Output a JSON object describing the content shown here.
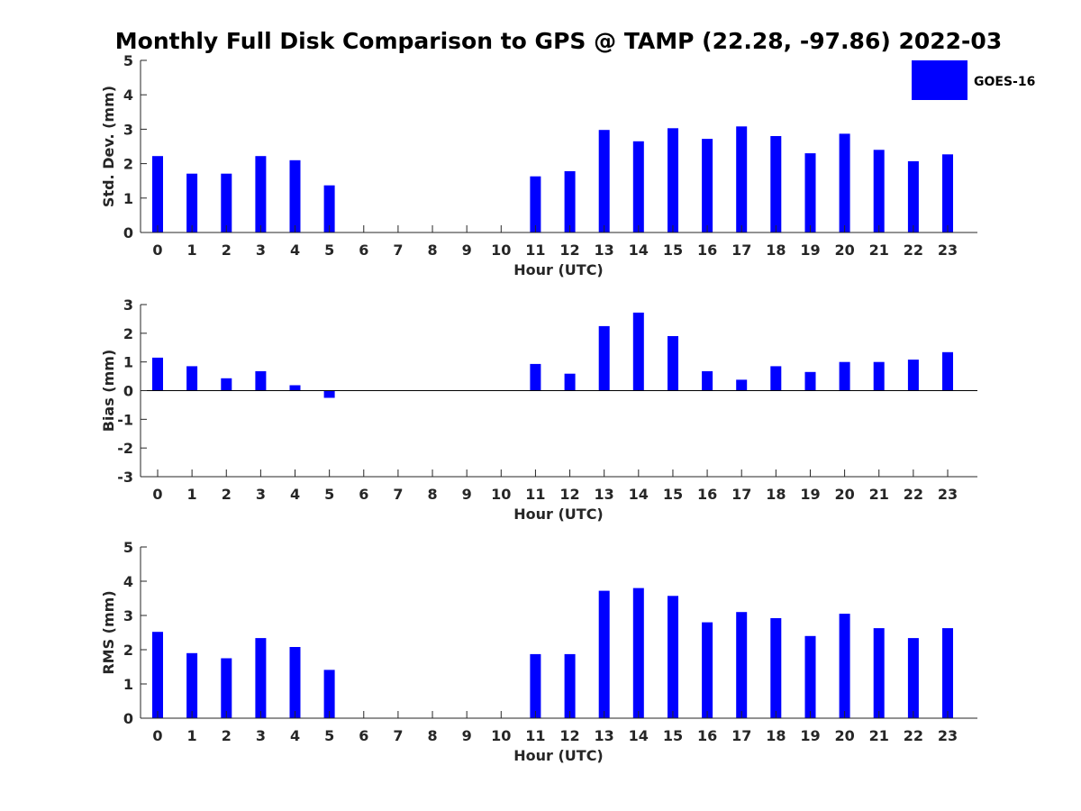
{
  "title": "Monthly Full Disk Comparison to GPS @ TAMP (22.28, -97.86) 2022-03",
  "colors": {
    "bar": "#0000ff",
    "axis": "#262626"
  },
  "chart_data": [
    {
      "type": "bar",
      "xlabel": "Hour (UTC)",
      "ylabel": "Std. Dev. (mm)",
      "ylim": [
        0,
        5
      ],
      "yticks": [
        0,
        1,
        2,
        3,
        4,
        5
      ],
      "categories": [
        "0",
        "1",
        "2",
        "3",
        "4",
        "5",
        "6",
        "7",
        "8",
        "9",
        "10",
        "11",
        "12",
        "13",
        "14",
        "15",
        "16",
        "17",
        "18",
        "19",
        "20",
        "21",
        "22",
        "23"
      ],
      "series": [
        {
          "name": "GOES-16",
          "values": [
            2.22,
            1.71,
            1.71,
            2.22,
            2.1,
            1.37,
            null,
            null,
            null,
            null,
            null,
            1.63,
            1.78,
            2.98,
            2.65,
            3.03,
            2.72,
            3.08,
            2.8,
            2.3,
            2.87,
            2.4,
            2.07,
            2.27
          ]
        }
      ],
      "legend": {
        "position": "top-right",
        "entries": [
          "GOES-16"
        ]
      }
    },
    {
      "type": "bar",
      "xlabel": "Hour (UTC)",
      "ylabel": "Bias (mm)",
      "ylim": [
        -3,
        3
      ],
      "yticks": [
        -3,
        -2,
        -1,
        0,
        1,
        2,
        3
      ],
      "categories": [
        "0",
        "1",
        "2",
        "3",
        "4",
        "5",
        "6",
        "7",
        "8",
        "9",
        "10",
        "11",
        "12",
        "13",
        "14",
        "15",
        "16",
        "17",
        "18",
        "19",
        "20",
        "21",
        "22",
        "23"
      ],
      "series": [
        {
          "name": "GOES-16",
          "values": [
            1.15,
            0.85,
            0.43,
            0.68,
            0.19,
            -0.25,
            null,
            null,
            null,
            null,
            null,
            0.93,
            0.59,
            2.25,
            2.72,
            1.9,
            0.68,
            0.38,
            0.85,
            0.65,
            1.0,
            1.0,
            1.08,
            1.34
          ]
        }
      ]
    },
    {
      "type": "bar",
      "xlabel": "Hour (UTC)",
      "ylabel": "RMS (mm)",
      "ylim": [
        0,
        5
      ],
      "yticks": [
        0,
        1,
        2,
        3,
        4,
        5
      ],
      "categories": [
        "0",
        "1",
        "2",
        "3",
        "4",
        "5",
        "6",
        "7",
        "8",
        "9",
        "10",
        "11",
        "12",
        "13",
        "14",
        "15",
        "16",
        "17",
        "18",
        "19",
        "20",
        "21",
        "22",
        "23"
      ],
      "series": [
        {
          "name": "GOES-16",
          "values": [
            2.52,
            1.9,
            1.75,
            2.34,
            2.08,
            1.41,
            null,
            null,
            null,
            null,
            null,
            1.87,
            1.87,
            3.72,
            3.8,
            3.57,
            2.8,
            3.1,
            2.92,
            2.4,
            3.05,
            2.63,
            2.34,
            2.63
          ]
        }
      ]
    }
  ]
}
